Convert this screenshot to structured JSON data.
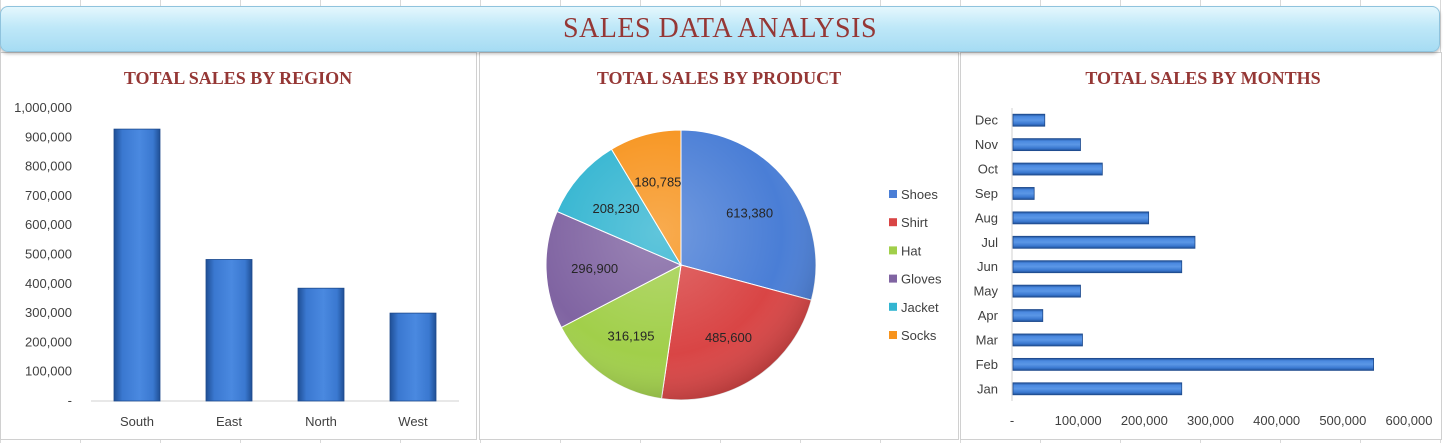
{
  "banner": {
    "title": "SALES DATA ANALYSIS"
  },
  "colors": {
    "title": "#953735",
    "bar": "#3a78d0",
    "banner": "#bfe8f8"
  },
  "chart_data": [
    {
      "type": "bar",
      "title": "TOTAL SALES BY REGION",
      "categories": [
        "South",
        "East",
        "North",
        "West"
      ],
      "values": [
        928000,
        483000,
        385000,
        300000
      ],
      "ylim": [
        0,
        1000000
      ],
      "yticks": [
        0,
        100000,
        200000,
        300000,
        400000,
        500000,
        600000,
        700000,
        800000,
        900000,
        1000000
      ],
      "ytick_labels": [
        "-",
        "100,000",
        "200,000",
        "300,000",
        "400,000",
        "500,000",
        "600,000",
        "700,000",
        "800,000",
        "900,000",
        "1,000,000"
      ],
      "grid": false,
      "legend": "none"
    },
    {
      "type": "pie",
      "title": "TOTAL SALES BY PRODUCT",
      "labels": [
        "Shoes",
        "Shirt",
        "Hat",
        "Gloves",
        "Jacket",
        "Socks"
      ],
      "values": [
        613380,
        485600,
        316195,
        296900,
        208230,
        180785
      ],
      "value_labels": [
        "613,380",
        "485,600",
        "316,195",
        "296,900",
        "208,230",
        "180,785"
      ],
      "colors": [
        "#4a7ed6",
        "#d94545",
        "#a1cf4a",
        "#8064a2",
        "#33b5d1",
        "#f7941e"
      ],
      "legend": "right"
    },
    {
      "type": "bar",
      "orientation": "horizontal",
      "title": "TOTAL SALES BY MONTHS",
      "categories": [
        "Jan",
        "Feb",
        "Mar",
        "Apr",
        "May",
        "Jun",
        "Jul",
        "Aug",
        "Sep",
        "Oct",
        "Nov",
        "Dec"
      ],
      "values": [
        255000,
        545000,
        105000,
        45000,
        102000,
        255000,
        275000,
        205000,
        32000,
        135000,
        102000,
        48000
      ],
      "xlim": [
        0,
        600000
      ],
      "xticks": [
        0,
        100000,
        200000,
        300000,
        400000,
        500000,
        600000
      ],
      "xtick_labels": [
        "-",
        "100,000",
        "200,000",
        "300,000",
        "400,000",
        "500,000",
        "600,000"
      ],
      "grid": false,
      "legend": "none"
    }
  ]
}
